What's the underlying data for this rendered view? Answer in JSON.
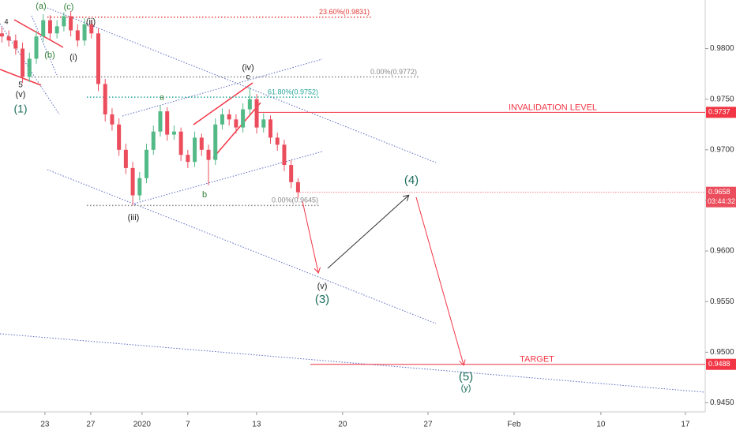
{
  "chart_data": {
    "type": "candlestick",
    "x": [
      -2.5,
      -2.1,
      -1.7,
      -1.3,
      -0.9,
      -0.5,
      -0.1,
      0.3,
      0.7,
      1.1,
      1.5,
      1.9,
      2.3,
      2.7,
      3.1,
      3.5,
      3.9,
      4.3,
      4.7,
      5.1,
      5.5,
      5.9,
      6.3,
      6.7,
      7.1,
      7.5,
      7.9,
      8.3,
      8.7,
      9.1,
      9.5,
      9.9,
      10.3,
      10.7,
      11.1,
      11.5,
      11.9,
      12.3,
      12.7,
      13.1,
      13.5,
      13.9,
      14.3,
      14.7
    ],
    "open": [
      0.9815,
      0.9812,
      0.9808,
      0.98,
      0.9772,
      0.979,
      0.9812,
      0.9828,
      0.9815,
      0.9822,
      0.9832,
      0.9818,
      0.9808,
      0.9824,
      0.9815,
      0.9765,
      0.9735,
      0.9725,
      0.97,
      0.9682,
      0.9655,
      0.9672,
      0.97,
      0.9718,
      0.9738,
      0.9715,
      0.9718,
      0.9695,
      0.9688,
      0.9712,
      0.97,
      0.969,
      0.9725,
      0.9735,
      0.973,
      0.9722,
      0.974,
      0.975,
      0.9722,
      0.973,
      0.9712,
      0.9705,
      0.9685,
      0.9668
    ],
    "high": [
      0.9821,
      0.9818,
      0.9814,
      0.9806,
      0.9796,
      0.9818,
      0.9834,
      0.9833,
      0.9828,
      0.9836,
      0.9837,
      0.9824,
      0.983,
      0.9828,
      0.982,
      0.977,
      0.9741,
      0.9731,
      0.9706,
      0.9688,
      0.9678,
      0.9706,
      0.9724,
      0.9744,
      0.9742,
      0.9724,
      0.9722,
      0.97,
      0.9718,
      0.9716,
      0.9705,
      0.9731,
      0.9741,
      0.974,
      0.9735,
      0.9746,
      0.9762,
      0.9755,
      0.9736,
      0.9734,
      0.9717,
      0.971,
      0.969,
      0.9672
    ],
    "low": [
      0.9806,
      0.9802,
      0.9794,
      0.9766,
      0.9767,
      0.9785,
      0.9807,
      0.9809,
      0.981,
      0.9817,
      0.9812,
      0.9802,
      0.9803,
      0.981,
      0.9758,
      0.9728,
      0.9719,
      0.9694,
      0.9676,
      0.9645,
      0.965,
      0.9667,
      0.9695,
      0.9713,
      0.9709,
      0.971,
      0.9689,
      0.9682,
      0.9683,
      0.9694,
      0.9665,
      0.9685,
      0.972,
      0.9724,
      0.9716,
      0.9717,
      0.9735,
      0.9716,
      0.9717,
      0.9706,
      0.9699,
      0.9679,
      0.9662,
      0.9652
    ],
    "close": [
      0.9812,
      0.9808,
      0.98,
      0.9772,
      0.979,
      0.9812,
      0.9828,
      0.9815,
      0.9822,
      0.9832,
      0.9818,
      0.9808,
      0.9824,
      0.9815,
      0.9765,
      0.9735,
      0.9725,
      0.97,
      0.9682,
      0.9655,
      0.9672,
      0.97,
      0.9718,
      0.9738,
      0.9715,
      0.9718,
      0.9695,
      0.9688,
      0.9712,
      0.97,
      0.969,
      0.9725,
      0.9735,
      0.973,
      0.9722,
      0.974,
      0.975,
      0.9722,
      0.973,
      0.9712,
      0.9705,
      0.9685,
      0.9668,
      0.9658
    ],
    "up_color": "#53b987",
    "down_color": "#eb4d5c",
    "xlim": [
      -2.61,
      38.35
    ],
    "xticks": [
      {
        "value": 0,
        "label": "23"
      },
      {
        "value": 2.66,
        "label": "27"
      },
      {
        "value": 5.64,
        "label": "2020"
      },
      {
        "value": 8.3,
        "label": "7"
      },
      {
        "value": 12.29,
        "label": "13"
      },
      {
        "value": 17.29,
        "label": "20"
      },
      {
        "value": 22.25,
        "label": "27"
      },
      {
        "value": 27.25,
        "label": "Feb"
      },
      {
        "value": 32.29,
        "label": "10"
      },
      {
        "value": 37.2,
        "label": "17"
      }
    ],
    "ylim": [
      0.9441,
      0.9848
    ],
    "yticks": [
      {
        "value": 0.98,
        "label": "0.9800"
      },
      {
        "value": 0.975,
        "label": "0.9750"
      },
      {
        "value": 0.97,
        "label": "0.9700"
      },
      {
        "value": 0.965,
        "label": "0.9650"
      },
      {
        "value": 0.96,
        "label": "0.9600"
      },
      {
        "value": 0.955,
        "label": "0.9550"
      },
      {
        "value": 0.95,
        "label": "0.9500"
      },
      {
        "value": 0.945,
        "label": "0.9450"
      }
    ],
    "levels": [
      {
        "label": "23.60%(0.9831)",
        "value": 0.9831,
        "color": "#e53935"
      },
      {
        "label": "0.00%(0.9772)",
        "value": 0.9772,
        "color": "#888888"
      },
      {
        "label": "61.80%(0.9752)",
        "value": 0.9752,
        "color": "#26a69a"
      },
      {
        "label": "0.00%(0.9645)",
        "value": 0.9645,
        "color": "#888888"
      }
    ],
    "lines": [
      {
        "label": "INVALIDATION LEVEL",
        "value": 0.9737,
        "color": "#f23645"
      },
      {
        "label": "TARGET",
        "value": 0.9488,
        "color": "#f23645"
      }
    ],
    "current_price": 0.9658,
    "countdown": "03:44:32",
    "annotations": [
      "(a)",
      "(c)",
      "(ii)",
      "(b)",
      "(i)",
      "4",
      "5",
      "(v)",
      "(1)",
      "(iv)",
      "c",
      "a",
      "b",
      "(iii)",
      "(v)",
      "(3)",
      "(4)",
      "(5)",
      "(y)"
    ]
  }
}
